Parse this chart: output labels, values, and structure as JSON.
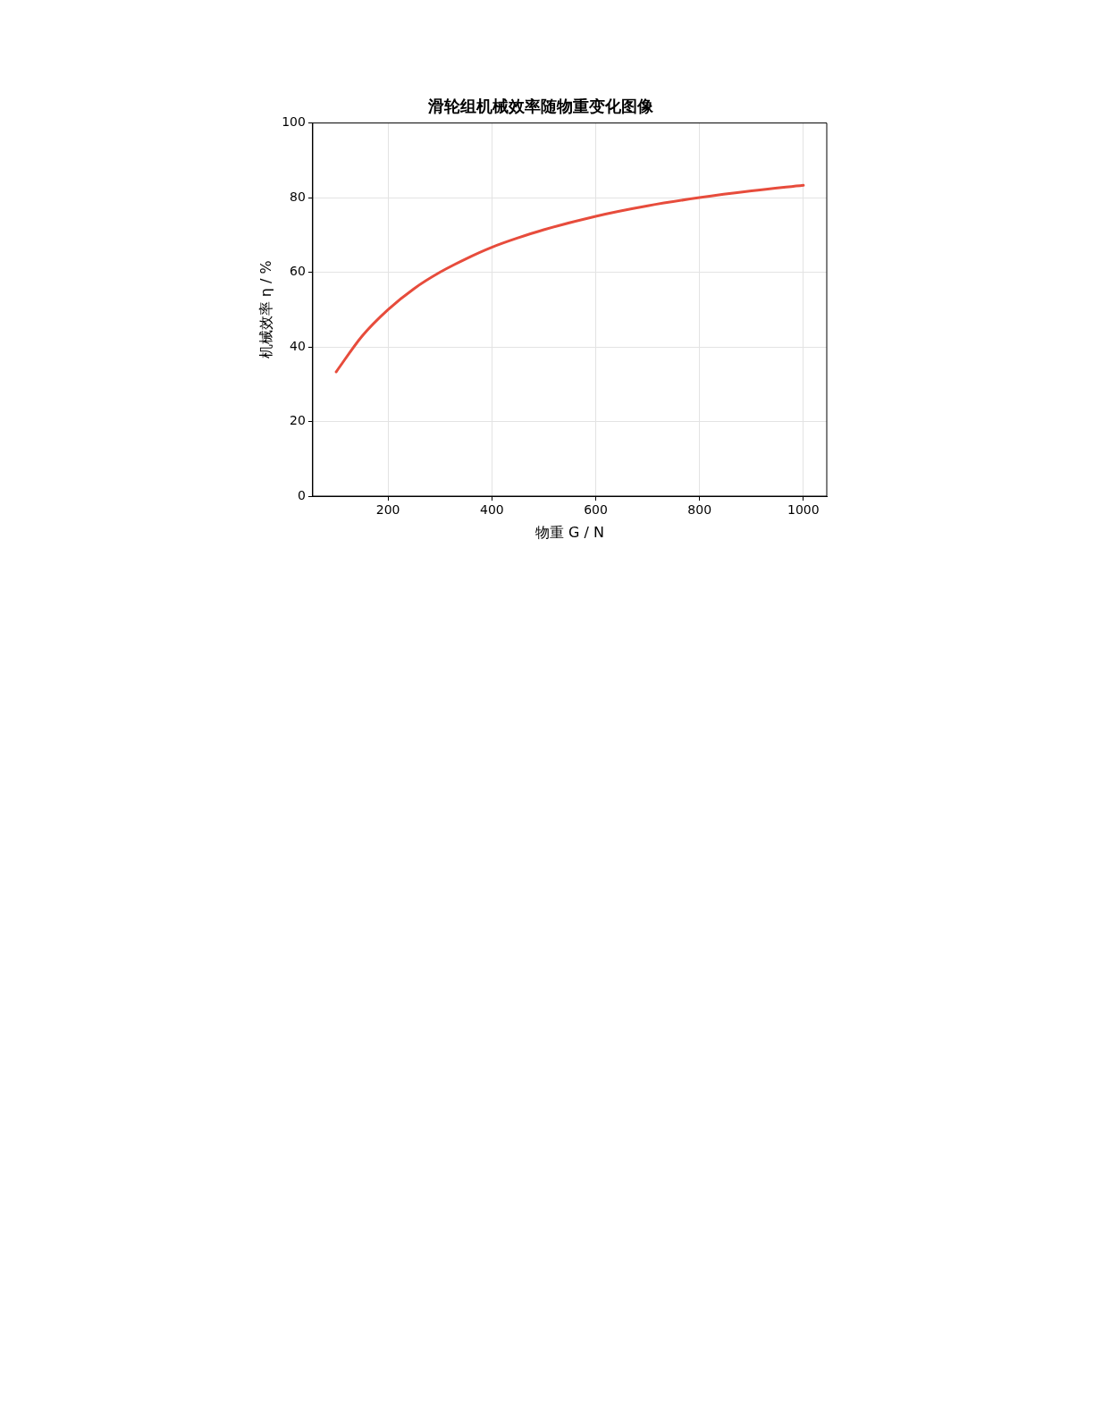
{
  "chart_data": {
    "type": "line",
    "title": "滑轮组机械效率随物重变化图像",
    "xlabel": "物重 G / N",
    "ylabel": "机械效率 η / %",
    "x": [
      100,
      150,
      200,
      250,
      300,
      350,
      400,
      450,
      500,
      600,
      700,
      800,
      900,
      1000
    ],
    "series": [
      {
        "color": "#e74c3c",
        "values": [
          33.3,
          42.9,
          50,
          55.6,
          60,
          63.6,
          66.7,
          69.2,
          71.4,
          75,
          77.8,
          80,
          81.8,
          83.3
        ]
      }
    ],
    "xlim": [
      55,
      1045
    ],
    "xticks": [
      200,
      400,
      600,
      800,
      1000
    ],
    "ylim": [
      0,
      100
    ],
    "yticks": [
      0,
      20,
      40,
      60,
      80,
      100
    ],
    "grid": true,
    "legend": false,
    "marker": "none",
    "line_style": "solid"
  }
}
